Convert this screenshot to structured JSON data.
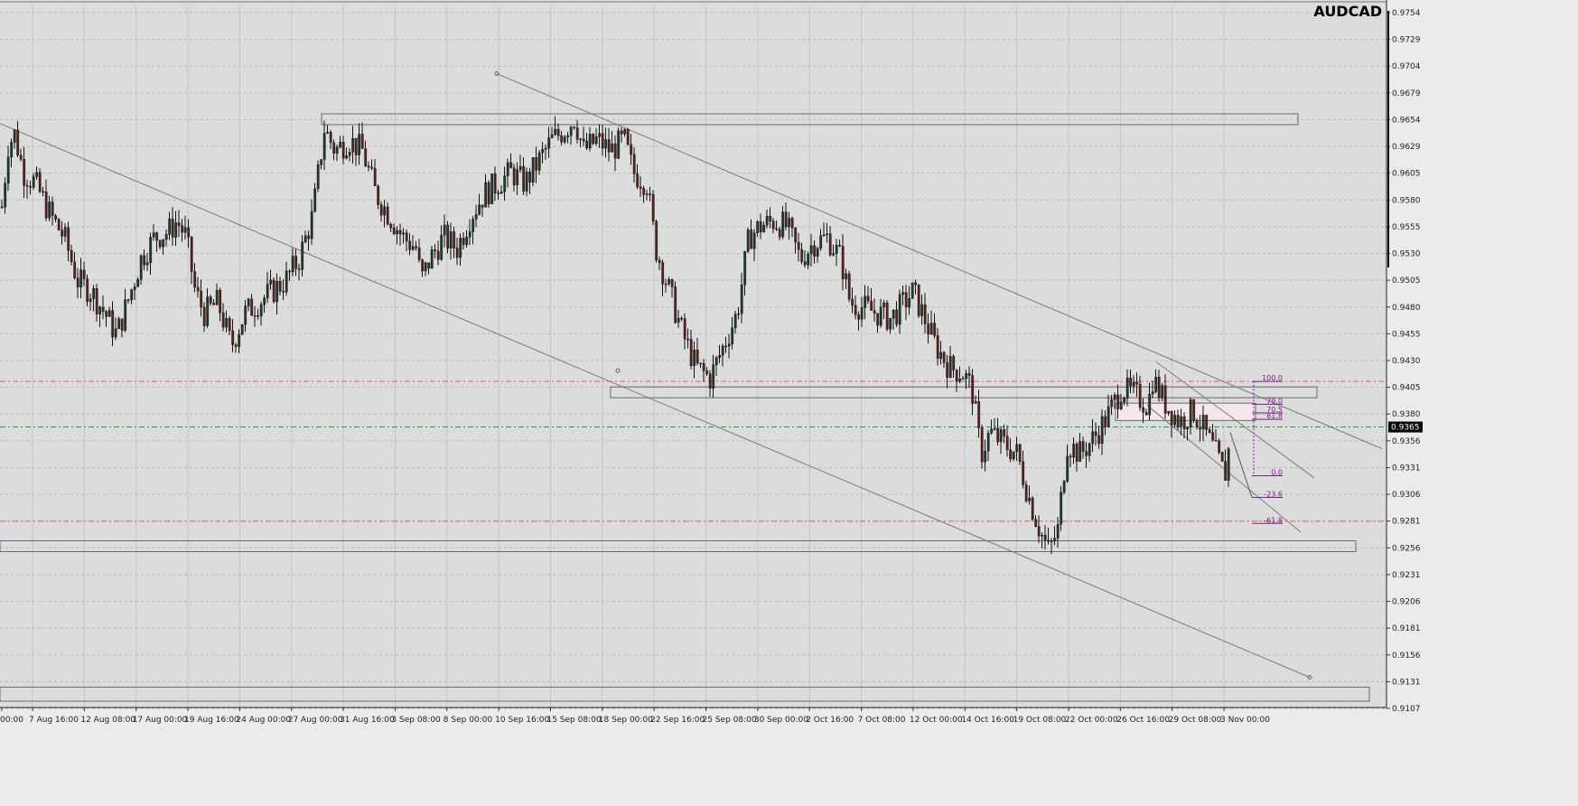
{
  "chart_data": {
    "type": "candlestick",
    "symbol": "AUDCAD",
    "ylim": [
      0.9107,
      0.9754
    ],
    "x_tick_labels": [
      "00:00",
      "7 Aug 16:00",
      "12 Aug 08:00",
      "17 Aug 00:00",
      "19 Aug 16:00",
      "24 Aug 00:00",
      "27 Aug 00:00",
      "31 Aug 16:00",
      "3 Sep 08:00",
      "8 Sep 00:00",
      "10 Sep 16:00",
      "15 Sep 08:00",
      "18 Sep 00:00",
      "22 Sep 16:00",
      "25 Sep 08:00",
      "30 Sep 00:00",
      "2 Oct 16:00",
      "7 Oct 08:00",
      "12 Oct 00:00",
      "14 Oct 16:00",
      "19 Oct 08:00",
      "22 Oct 00:00",
      "26 Oct 16:00",
      "29 Oct 08:00",
      "3 Nov 00:00"
    ],
    "y_tick_labels": [
      "0.9754",
      "0.9729",
      "0.9704",
      "0.9679",
      "0.9654",
      "0.9629",
      "0.9605",
      "0.9580",
      "0.9555",
      "0.9530",
      "0.9505",
      "0.9480",
      "0.9455",
      "0.9430",
      "0.9405",
      "0.9380",
      "0.9356",
      "0.9331",
      "0.9306",
      "0.9281",
      "0.9256",
      "0.9231",
      "0.9206",
      "0.9181",
      "0.9156",
      "0.9131",
      "0.9107"
    ],
    "current_price": "0.9365",
    "path": [
      [
        0,
        0.956
      ],
      [
        8,
        0.9625
      ],
      [
        15,
        0.9635
      ],
      [
        25,
        0.96
      ],
      [
        38,
        0.959
      ],
      [
        55,
        0.956
      ],
      [
        70,
        0.954
      ],
      [
        85,
        0.95
      ],
      [
        100,
        0.949
      ],
      [
        115,
        0.947
      ],
      [
        128,
        0.945
      ],
      [
        140,
        0.948
      ],
      [
        155,
        0.952
      ],
      [
        170,
        0.954
      ],
      [
        185,
        0.9545
      ],
      [
        195,
        0.9555
      ],
      [
        205,
        0.954
      ],
      [
        215,
        0.949
      ],
      [
        225,
        0.947
      ],
      [
        240,
        0.948
      ],
      [
        255,
        0.944
      ],
      [
        270,
        0.947
      ],
      [
        285,
        0.948
      ],
      [
        300,
        0.949
      ],
      [
        315,
        0.95
      ],
      [
        330,
        0.952
      ],
      [
        345,
        0.956
      ],
      [
        358,
        0.964
      ],
      [
        370,
        0.962
      ],
      [
        385,
        0.963
      ],
      [
        400,
        0.962
      ],
      [
        415,
        0.958
      ],
      [
        430,
        0.956
      ],
      [
        445,
        0.954
      ],
      [
        460,
        0.953
      ],
      [
        465,
        0.95
      ],
      [
        475,
        0.952
      ],
      [
        490,
        0.954
      ],
      [
        505,
        0.953
      ],
      [
        520,
        0.956
      ],
      [
        535,
        0.958
      ],
      [
        550,
        0.959
      ],
      [
        565,
        0.96
      ],
      [
        580,
        0.959
      ],
      [
        595,
        0.961
      ],
      [
        610,
        0.963
      ],
      [
        625,
        0.964
      ],
      [
        635,
        0.965
      ],
      [
        645,
        0.962
      ],
      [
        660,
        0.963
      ],
      [
        675,
        0.962
      ],
      [
        690,
        0.963
      ],
      [
        700,
        0.96
      ],
      [
        715,
        0.959
      ],
      [
        725,
        0.953
      ],
      [
        740,
        0.949
      ],
      [
        755,
        0.945
      ],
      [
        770,
        0.942
      ],
      [
        785,
        0.941
      ],
      [
        800,
        0.944
      ],
      [
        815,
        0.947
      ],
      [
        828,
        0.954
      ],
      [
        840,
        0.955
      ],
      [
        855,
        0.9555
      ],
      [
        870,
        0.955
      ],
      [
        885,
        0.952
      ],
      [
        900,
        0.9535
      ],
      [
        915,
        0.954
      ],
      [
        930,
        0.952
      ],
      [
        940,
        0.948
      ],
      [
        955,
        0.9475
      ],
      [
        970,
        0.947
      ],
      [
        985,
        0.9465
      ],
      [
        1000,
        0.948
      ],
      [
        1010,
        0.949
      ],
      [
        1020,
        0.947
      ],
      [
        1035,
        0.944
      ],
      [
        1050,
        0.942
      ],
      [
        1065,
        0.9415
      ],
      [
        1075,
        0.94
      ],
      [
        1085,
        0.934
      ],
      [
        1095,
        0.936
      ],
      [
        1110,
        0.935
      ],
      [
        1125,
        0.934
      ],
      [
        1138,
        0.93
      ],
      [
        1150,
        0.927
      ],
      [
        1160,
        0.925
      ],
      [
        1170,
        0.927
      ],
      [
        1180,
        0.935
      ],
      [
        1195,
        0.934
      ],
      [
        1210,
        0.9355
      ],
      [
        1225,
        0.9375
      ],
      [
        1240,
        0.94
      ],
      [
        1255,
        0.9395
      ],
      [
        1270,
        0.9385
      ],
      [
        1275,
        0.941
      ],
      [
        1290,
        0.9385
      ],
      [
        1305,
        0.937
      ],
      [
        1320,
        0.938
      ],
      [
        1330,
        0.9365
      ],
      [
        1345,
        0.934
      ],
      [
        1355,
        0.932
      ],
      [
        1362,
        0.936
      ]
    ],
    "zones": [
      {
        "x1": 356,
        "x2": 1437,
        "top": 0.9654,
        "bottom": 0.9644
      },
      {
        "x1": 676,
        "x2": 1458,
        "top": 0.9402,
        "bottom": 0.9392
      },
      {
        "x1": 0,
        "x2": 1501,
        "top": 0.926,
        "bottom": 0.925
      },
      {
        "x1": 0,
        "x2": 1516,
        "top": 0.9125,
        "bottom": 0.9112
      },
      {
        "x1": 1235,
        "x2": 1390,
        "top": 0.9387,
        "bottom": 0.9371,
        "fill": "#f6e6ec"
      }
    ],
    "h_lines": [
      {
        "price": 0.9407,
        "color": "#e06060"
      },
      {
        "price": 0.9365,
        "color": "#1f9e3a"
      },
      {
        "price": 0.9278,
        "color": "#e06060"
      }
    ],
    "trend_lines": [
      {
        "x1": 0,
        "y1": 0.9645,
        "x2": 1450,
        "y2": 0.9134
      },
      {
        "x1": 550,
        "y1": 0.9691,
        "x2": 1530,
        "y2": 0.9345
      },
      {
        "x1": 1280,
        "y1": 0.9425,
        "x2": 1455,
        "y2": 0.9318
      },
      {
        "x1": 1270,
        "y1": 0.9385,
        "x2": 1440,
        "y2": 0.9268
      }
    ],
    "fib": {
      "x1": 1386,
      "x2": 1420,
      "levels": [
        {
          "label": "100.0",
          "price": 0.9407
        },
        {
          "label": "79.0",
          "price": 0.9386
        },
        {
          "label": "70.5",
          "price": 0.9378
        },
        {
          "label": "61.8",
          "price": 0.9372
        },
        {
          "label": "0.0",
          "price": 0.932
        },
        {
          "label": "-23.6",
          "price": 0.93
        },
        {
          "label": "-61.8",
          "price": 0.9276
        }
      ]
    }
  }
}
